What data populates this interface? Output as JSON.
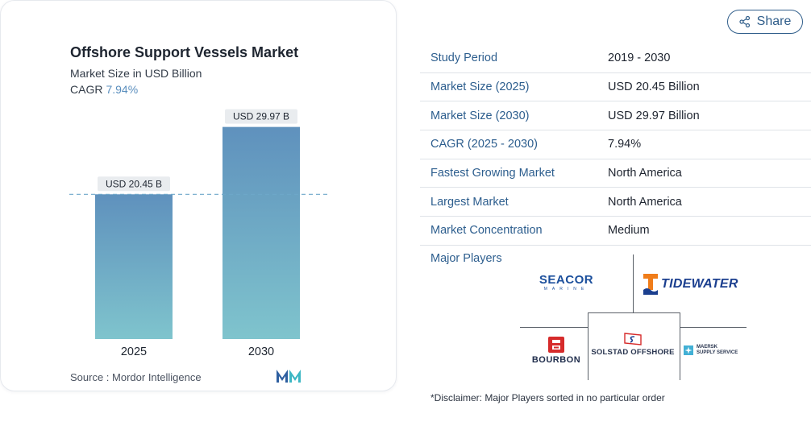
{
  "card": {
    "title": "Offshore Support Vessels Market",
    "subtitle": "Market Size in USD Billion",
    "cagr_label": "CAGR",
    "cagr_value": "7.94%",
    "source": "Source :  Mordor Intelligence"
  },
  "chart_data": {
    "type": "bar",
    "categories": [
      "2025",
      "2030"
    ],
    "values": [
      20.45,
      29.97
    ],
    "value_labels": [
      "USD 20.45 B",
      "USD 29.97 B"
    ],
    "ylim": [
      0,
      33
    ],
    "reference_line": 20.45,
    "colors": {
      "bar_top": "#5f91bd",
      "bar_bottom": "#7fc4cd",
      "reference": "#6ea8c9"
    }
  },
  "share": {
    "label": "Share"
  },
  "info": {
    "rows": [
      {
        "key": "Study Period",
        "value": "2019 - 2030"
      },
      {
        "key": "Market Size (2025)",
        "value": "USD 20.45 Billion"
      },
      {
        "key": "Market Size (2030)",
        "value": "USD 29.97 Billion"
      },
      {
        "key": "CAGR (2025 - 2030)",
        "value": "7.94%"
      },
      {
        "key": "Fastest Growing Market",
        "value": "North America"
      },
      {
        "key": "Largest Market",
        "value": "North America"
      },
      {
        "key": "Market Concentration",
        "value": "Medium"
      }
    ],
    "major_players_label": "Major Players"
  },
  "players": {
    "seacor": {
      "name": "SEACOR",
      "tag": "MARINE"
    },
    "tidewater": {
      "name": "TIDEWATER"
    },
    "bourbon": {
      "name": "BOURBON"
    },
    "solstad": {
      "name": "SOLSTAD OFFSHORE"
    },
    "maersk": {
      "line1": "MAERSK",
      "line2": "SUPPLY SERVICE"
    }
  },
  "disclaimer": "*Disclaimer: Major Players sorted in no particular order",
  "colors": {
    "accent": "#2d5e8e",
    "logo_red": "#d62b2b",
    "logo_blue": "#1b4f9c"
  }
}
